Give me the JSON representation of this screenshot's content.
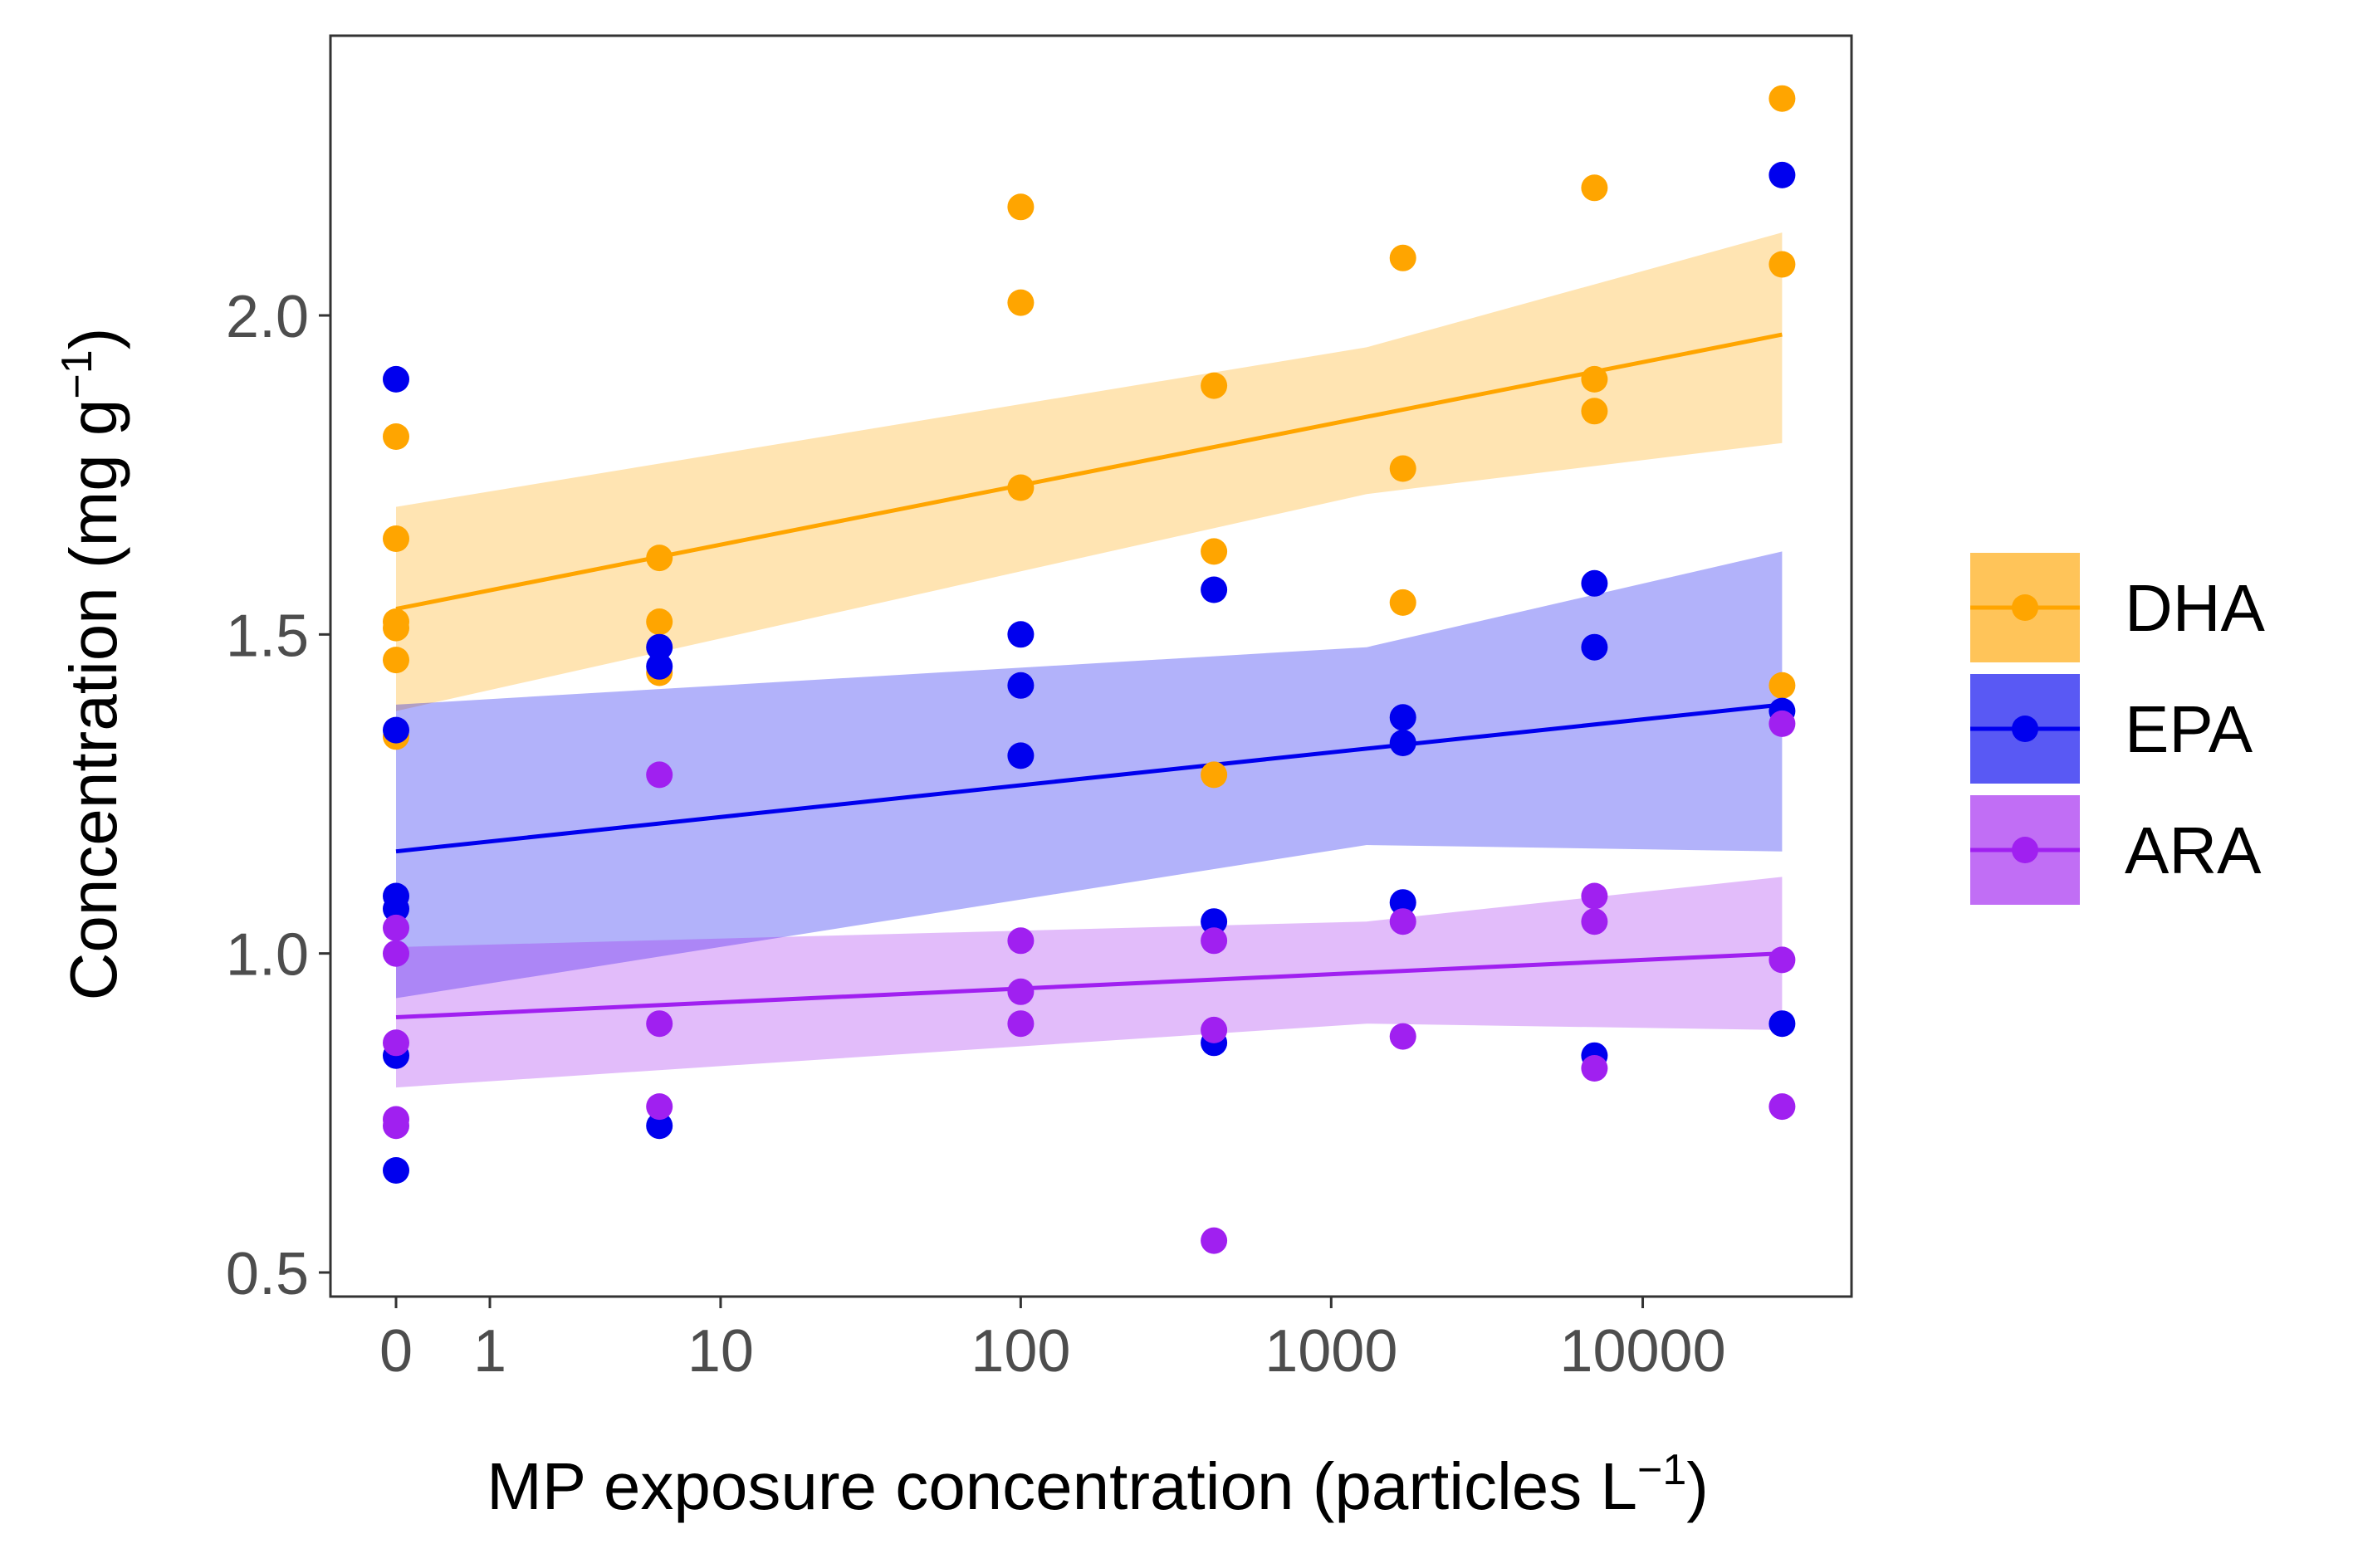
{
  "chart_data": {
    "type": "scatter",
    "title": "",
    "xlabel": {
      "text": "MP exposure concentration (particles L",
      "sup": "−1",
      "close": ")"
    },
    "ylabel": {
      "text": "Concentration (mg  g",
      "sup": "−1",
      "close": ")"
    },
    "x_scale": "pseudo-log",
    "y_range": [
      0.45,
      2.42
    ],
    "x_ticks": [
      {
        "value": 0,
        "label": "0"
      },
      {
        "value": 1,
        "label": "1"
      },
      {
        "value": 10,
        "label": "10"
      },
      {
        "value": 100,
        "label": "100"
      },
      {
        "value": 1000,
        "label": "1000"
      },
      {
        "value": 10000,
        "label": "10000"
      }
    ],
    "y_ticks": [
      {
        "value": 0.5,
        "label": "0.5"
      },
      {
        "value": 1.0,
        "label": "1.0"
      },
      {
        "value": 1.5,
        "label": "1.5"
      },
      {
        "value": 2.0,
        "label": "2.0"
      }
    ],
    "grid": false,
    "legend_position": "right",
    "series": [
      {
        "name": "DHA",
        "color": "#FFA500",
        "points": [
          [
            0,
            1.81
          ],
          [
            0,
            1.65
          ],
          [
            0,
            1.52
          ],
          [
            0,
            1.51
          ],
          [
            0,
            1.46
          ],
          [
            0,
            1.34
          ],
          [
            6,
            1.62
          ],
          [
            6,
            1.52
          ],
          [
            6,
            1.44
          ],
          [
            100,
            2.17
          ],
          [
            100,
            2.02
          ],
          [
            100,
            1.73
          ],
          [
            420,
            1.89
          ],
          [
            420,
            1.63
          ],
          [
            420,
            1.28
          ],
          [
            1700,
            2.09
          ],
          [
            1700,
            1.76
          ],
          [
            1700,
            1.55
          ],
          [
            7000,
            2.2
          ],
          [
            7000,
            1.9
          ],
          [
            7000,
            1.85
          ],
          [
            28000,
            2.34
          ],
          [
            28000,
            2.08
          ],
          [
            28000,
            1.42
          ]
        ],
        "fit": {
          "x": [
            0,
            28000
          ],
          "y": [
            1.54,
            1.97
          ]
        },
        "ribbon": [
          {
            "x": 0,
            "lo": 1.38,
            "hi": 1.7
          },
          {
            "x": 1300,
            "lo": 1.72,
            "hi": 1.95
          },
          {
            "x": 28000,
            "lo": 1.8,
            "hi": 2.13
          }
        ]
      },
      {
        "name": "EPA",
        "color": "#0000EE",
        "points": [
          [
            0,
            1.9
          ],
          [
            0,
            1.35
          ],
          [
            0,
            1.09
          ],
          [
            0,
            1.07
          ],
          [
            0,
            0.84
          ],
          [
            0,
            0.66
          ],
          [
            6,
            1.48
          ],
          [
            6,
            1.45
          ],
          [
            6,
            0.73
          ],
          [
            100,
            1.5
          ],
          [
            100,
            1.42
          ],
          [
            100,
            1.31
          ],
          [
            420,
            1.57
          ],
          [
            420,
            1.05
          ],
          [
            420,
            0.86
          ],
          [
            1700,
            1.37
          ],
          [
            1700,
            1.33
          ],
          [
            1700,
            1.08
          ],
          [
            7000,
            1.58
          ],
          [
            7000,
            1.48
          ],
          [
            7000,
            0.84
          ],
          [
            28000,
            2.22
          ],
          [
            28000,
            1.38
          ],
          [
            28000,
            0.89
          ]
        ],
        "fit": {
          "x": [
            0,
            28000
          ],
          "y": [
            1.16,
            1.39
          ]
        },
        "ribbon": [
          {
            "x": 0,
            "lo": 0.93,
            "hi": 1.39
          },
          {
            "x": 1300,
            "lo": 1.17,
            "hi": 1.48
          },
          {
            "x": 28000,
            "lo": 1.16,
            "hi": 1.63
          }
        ]
      },
      {
        "name": "ARA",
        "color": "#A020F0",
        "points": [
          [
            0,
            1.04
          ],
          [
            0,
            1.0
          ],
          [
            0,
            0.86
          ],
          [
            0,
            0.74
          ],
          [
            0,
            0.73
          ],
          [
            6,
            1.28
          ],
          [
            6,
            0.89
          ],
          [
            6,
            0.76
          ],
          [
            100,
            1.02
          ],
          [
            100,
            0.94
          ],
          [
            100,
            0.89
          ],
          [
            420,
            1.02
          ],
          [
            420,
            0.88
          ],
          [
            420,
            0.55
          ],
          [
            1700,
            1.05
          ],
          [
            1700,
            0.87
          ],
          [
            7000,
            1.09
          ],
          [
            7000,
            1.05
          ],
          [
            7000,
            0.82
          ],
          [
            28000,
            1.36
          ],
          [
            28000,
            0.99
          ],
          [
            28000,
            0.76
          ]
        ],
        "fit": {
          "x": [
            0,
            28000
          ],
          "y": [
            0.9,
            1.0
          ]
        },
        "ribbon": [
          {
            "x": 0,
            "lo": 0.79,
            "hi": 1.01
          },
          {
            "x": 1300,
            "lo": 0.89,
            "hi": 1.05
          },
          {
            "x": 28000,
            "lo": 0.88,
            "hi": 1.12
          }
        ]
      }
    ]
  }
}
